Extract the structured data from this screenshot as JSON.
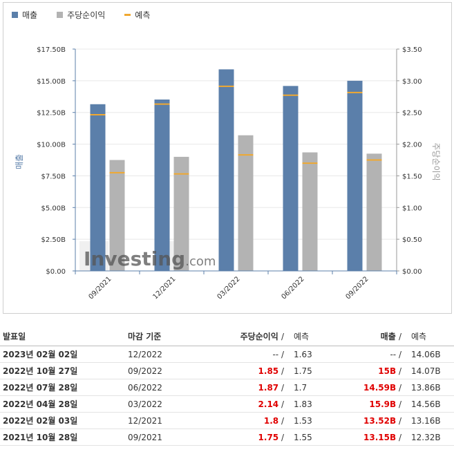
{
  "colors": {
    "revenue": "#5b7faa",
    "eps": "#b3b3b3",
    "forecast": "#f0a830"
  },
  "chart_data": {
    "type": "bar",
    "categories": [
      "09/2021",
      "12/2021",
      "03/2022",
      "06/2022",
      "09/2022"
    ],
    "series": [
      {
        "name": "매출",
        "axis": "left",
        "values": [
          13.15,
          13.52,
          15.9,
          14.59,
          15.0
        ]
      },
      {
        "name": "주당순이익",
        "axis": "right",
        "values": [
          1.75,
          1.8,
          2.14,
          1.87,
          1.85
        ]
      }
    ],
    "forecast": {
      "name": "예측",
      "revenue": [
        12.32,
        13.16,
        14.56,
        13.86,
        14.07
      ],
      "eps": [
        1.55,
        1.53,
        1.83,
        1.7,
        1.75
      ]
    },
    "left_axis": {
      "label": "매출",
      "ylim": [
        0,
        17.5
      ],
      "ticks": [
        "$0.00",
        "$2.50B",
        "$5.00B",
        "$7.50B",
        "$10.00B",
        "$12.50B",
        "$15.00B",
        "$17.50B"
      ]
    },
    "right_axis": {
      "label": "주당순이익",
      "ylim": [
        0,
        3.5
      ],
      "ticks": [
        "$0.00",
        "$0.50",
        "$1.00",
        "$1.50",
        "$2.00",
        "$2.50",
        "$3.00",
        "$3.50"
      ]
    },
    "legend": [
      "매출",
      "주당순이익",
      "예측"
    ],
    "watermark": "Investing.com"
  },
  "table": {
    "headers": {
      "date": "발표일",
      "period": "마감 기준",
      "eps": "주당순이익",
      "eps_forecast": "예측",
      "revenue": "매출",
      "revenue_forecast": "예측",
      "slash": "/"
    },
    "rows": [
      {
        "date": "2023년 02월 02일",
        "period": "12/2022",
        "eps": "--",
        "eps_forecast": "1.63",
        "revenue": "--",
        "revenue_forecast": "14.06B",
        "highlight": false
      },
      {
        "date": "2022년 10월 27일",
        "period": "09/2022",
        "eps": "1.85",
        "eps_forecast": "1.75",
        "revenue": "15B",
        "revenue_forecast": "14.07B",
        "highlight": true
      },
      {
        "date": "2022년 07월 28일",
        "period": "06/2022",
        "eps": "1.87",
        "eps_forecast": "1.7",
        "revenue": "14.59B",
        "revenue_forecast": "13.86B",
        "highlight": true
      },
      {
        "date": "2022년 04월 28일",
        "period": "03/2022",
        "eps": "2.14",
        "eps_forecast": "1.83",
        "revenue": "15.9B",
        "revenue_forecast": "14.56B",
        "highlight": true
      },
      {
        "date": "2022년 02월 03일",
        "period": "12/2021",
        "eps": "1.8",
        "eps_forecast": "1.53",
        "revenue": "13.52B",
        "revenue_forecast": "13.16B",
        "highlight": true
      },
      {
        "date": "2021년 10월 28일",
        "period": "09/2021",
        "eps": "1.75",
        "eps_forecast": "1.55",
        "revenue": "13.15B",
        "revenue_forecast": "12.32B",
        "highlight": true
      }
    ]
  }
}
